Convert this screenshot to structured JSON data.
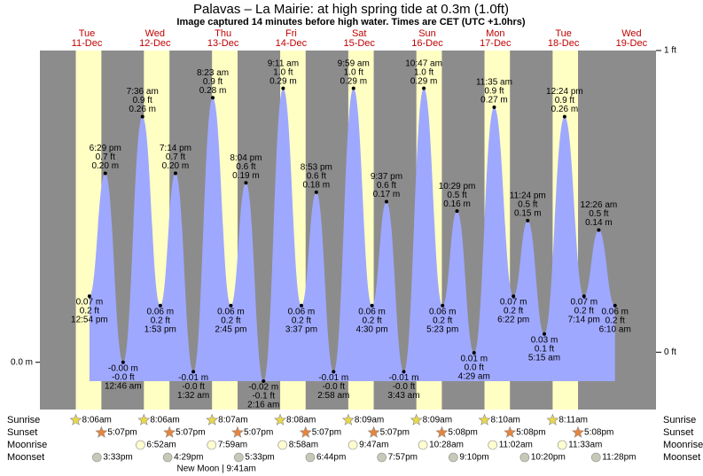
{
  "chart_data": {
    "type": "tide",
    "title": "Palavas – La Mairie: at high  spring tide at 0.3m (1.0ft)",
    "subtitle": "Image captured 14 minutes before high water. Times are CET (UTC +1.0hrs)",
    "color": "#9fa8ff",
    "night_color": "#8c8c8c",
    "day_color": "#ffffc4",
    "ylim": [
      -0.05,
      0.33
    ],
    "yticks": [
      {
        "value": 0,
        "label": "0.0 m"
      }
    ],
    "y2lim": [
      -0.19,
      1.0
    ],
    "y2ticks": [
      {
        "value": 1,
        "label": "1 ft"
      },
      {
        "value": 0,
        "label": "0 ft"
      }
    ],
    "row_labels": [
      "Sunrise",
      "Sunset",
      "Moonrise",
      "Moonset"
    ],
    "days": [
      {
        "weekday": "Tue",
        "date": "11-Dec",
        "sunrise": "8:06am",
        "sunset": "5:07pm",
        "moonset": "3:33pm",
        "tides": [
          {
            "time": "12:54 pm",
            "m": 0.07,
            "m_label": "0.07 m",
            "ft": 0.2,
            "ft_label": "0.2 ft"
          },
          {
            "time": "6:29 pm",
            "m": 0.2,
            "m_label": "0.20 m",
            "ft": 0.7,
            "ft_label": "0.7 ft"
          }
        ]
      },
      {
        "weekday": "Wed",
        "date": "12-Dec",
        "sunrise": "8:06am",
        "sunset": "5:07pm",
        "moonrise": "6:52am",
        "moonset": "4:29pm",
        "tides": [
          {
            "time": "12:46 am",
            "m": 0,
            "m_label": "-0.00 m",
            "ft": 0,
            "ft_label": "-0.0 ft"
          },
          {
            "time": "7:36 am",
            "m": 0.26,
            "m_label": "0.26 m",
            "ft": 0.9,
            "ft_label": "0.9 ft"
          },
          {
            "time": "1:53 pm",
            "m": 0.06,
            "m_label": "0.06 m",
            "ft": 0.2,
            "ft_label": "0.2 ft"
          },
          {
            "time": "7:14 pm",
            "m": 0.2,
            "m_label": "0.20 m",
            "ft": 0.7,
            "ft_label": "0.7 ft"
          }
        ]
      },
      {
        "weekday": "Thu",
        "date": "13-Dec",
        "sunrise": "8:07am",
        "sunset": "5:07pm",
        "moonrise": "7:59am",
        "moonset": "5:33pm",
        "moon_phase": "New Moon | 9:41am",
        "tides": [
          {
            "time": "1:32 am",
            "m": -0.01,
            "m_label": "-0.01 m",
            "ft": 0,
            "ft_label": "-0.0 ft"
          },
          {
            "time": "8:23 am",
            "m": 0.28,
            "m_label": "0.28 m",
            "ft": 0.9,
            "ft_label": "0.9 ft"
          },
          {
            "time": "2:45 pm",
            "m": 0.06,
            "m_label": "0.06 m",
            "ft": 0.2,
            "ft_label": "0.2 ft"
          },
          {
            "time": "8:04 pm",
            "m": 0.19,
            "m_label": "0.19 m",
            "ft": 0.6,
            "ft_label": "0.6 ft"
          }
        ]
      },
      {
        "weekday": "Fri",
        "date": "14-Dec",
        "sunrise": "8:08am",
        "sunset": "5:07pm",
        "moonrise": "8:58am",
        "moonset": "6:44pm",
        "tides": [
          {
            "time": "2:16 am",
            "m": -0.02,
            "m_label": "-0.02 m",
            "ft": -0.1,
            "ft_label": "-0.1 ft"
          },
          {
            "time": "9:11 am",
            "m": 0.29,
            "m_label": "0.29 m",
            "ft": 1.0,
            "ft_label": "1.0 ft"
          },
          {
            "time": "3:37 pm",
            "m": 0.06,
            "m_label": "0.06 m",
            "ft": 0.2,
            "ft_label": "0.2 ft"
          },
          {
            "time": "8:53 pm",
            "m": 0.18,
            "m_label": "0.18 m",
            "ft": 0.6,
            "ft_label": "0.6 ft"
          }
        ]
      },
      {
        "weekday": "Sat",
        "date": "15-Dec",
        "sunrise": "8:09am",
        "sunset": "5:07pm",
        "moonrise": "9:47am",
        "moonset": "7:57pm",
        "tides": [
          {
            "time": "2:58 am",
            "m": -0.01,
            "m_label": "-0.01 m",
            "ft": 0,
            "ft_label": "-0.0 ft"
          },
          {
            "time": "9:59 am",
            "m": 0.29,
            "m_label": "0.29 m",
            "ft": 1.0,
            "ft_label": "1.0 ft"
          },
          {
            "time": "4:30 pm",
            "m": 0.06,
            "m_label": "0.06 m",
            "ft": 0.2,
            "ft_label": "0.2 ft"
          },
          {
            "time": "9:37 pm",
            "m": 0.17,
            "m_label": "0.17 m",
            "ft": 0.6,
            "ft_label": "0.6 ft"
          }
        ]
      },
      {
        "weekday": "Sun",
        "date": "16-Dec",
        "sunrise": "8:09am",
        "sunset": "5:08pm",
        "moonrise": "10:28am",
        "moonset": "9:10pm",
        "tides": [
          {
            "time": "3:43 am",
            "m": -0.01,
            "m_label": "-0.01 m",
            "ft": 0,
            "ft_label": "-0.0 ft"
          },
          {
            "time": "10:47 am",
            "m": 0.29,
            "m_label": "0.29 m",
            "ft": 1.0,
            "ft_label": "1.0 ft"
          },
          {
            "time": "5:23 pm",
            "m": 0.06,
            "m_label": "0.06 m",
            "ft": 0.2,
            "ft_label": "0.2 ft"
          },
          {
            "time": "10:29 pm",
            "m": 0.16,
            "m_label": "0.16 m",
            "ft": 0.5,
            "ft_label": "0.5 ft"
          }
        ]
      },
      {
        "weekday": "Mon",
        "date": "17-Dec",
        "sunrise": "8:10am",
        "sunset": "5:08pm",
        "moonrise": "11:02am",
        "moonset": "10:20pm",
        "tides": [
          {
            "time": "4:29 am",
            "m": 0.01,
            "m_label": "0.01 m",
            "ft": 0,
            "ft_label": "0.0 ft"
          },
          {
            "time": "11:35 am",
            "m": 0.27,
            "m_label": "0.27 m",
            "ft": 0.9,
            "ft_label": "0.9 ft"
          },
          {
            "time": "6:22 pm",
            "m": 0.07,
            "m_label": "0.07 m",
            "ft": 0.2,
            "ft_label": "0.2 ft"
          },
          {
            "time": "11:24 pm",
            "m": 0.15,
            "m_label": "0.15 m",
            "ft": 0.5,
            "ft_label": "0.5 ft"
          }
        ]
      },
      {
        "weekday": "Tue",
        "date": "18-Dec",
        "sunrise": "8:11am",
        "sunset": "5:08pm",
        "moonrise": "11:33am",
        "moonset": "11:28pm",
        "tides": [
          {
            "time": "5:15 am",
            "m": 0.03,
            "m_label": "0.03 m",
            "ft": 0.1,
            "ft_label": "0.1 ft"
          },
          {
            "time": "12:24 pm",
            "m": 0.26,
            "m_label": "0.26 m",
            "ft": 0.9,
            "ft_label": "0.9 ft"
          },
          {
            "time": "7:14 pm",
            "m": 0.07,
            "m_label": "0.07 m",
            "ft": 0.2,
            "ft_label": "0.2 ft"
          }
        ]
      },
      {
        "weekday": "Wed",
        "date": "19-Dec",
        "tides": [
          {
            "time": "12:26 am",
            "m": 0.14,
            "m_label": "0.14 m",
            "ft": 0.5,
            "ft_label": "0.5 ft"
          },
          {
            "time": "6:10 am",
            "m": 0.06,
            "m_label": "0.06 m",
            "ft": 0.2,
            "ft_label": "0.2 ft"
          }
        ]
      }
    ]
  }
}
